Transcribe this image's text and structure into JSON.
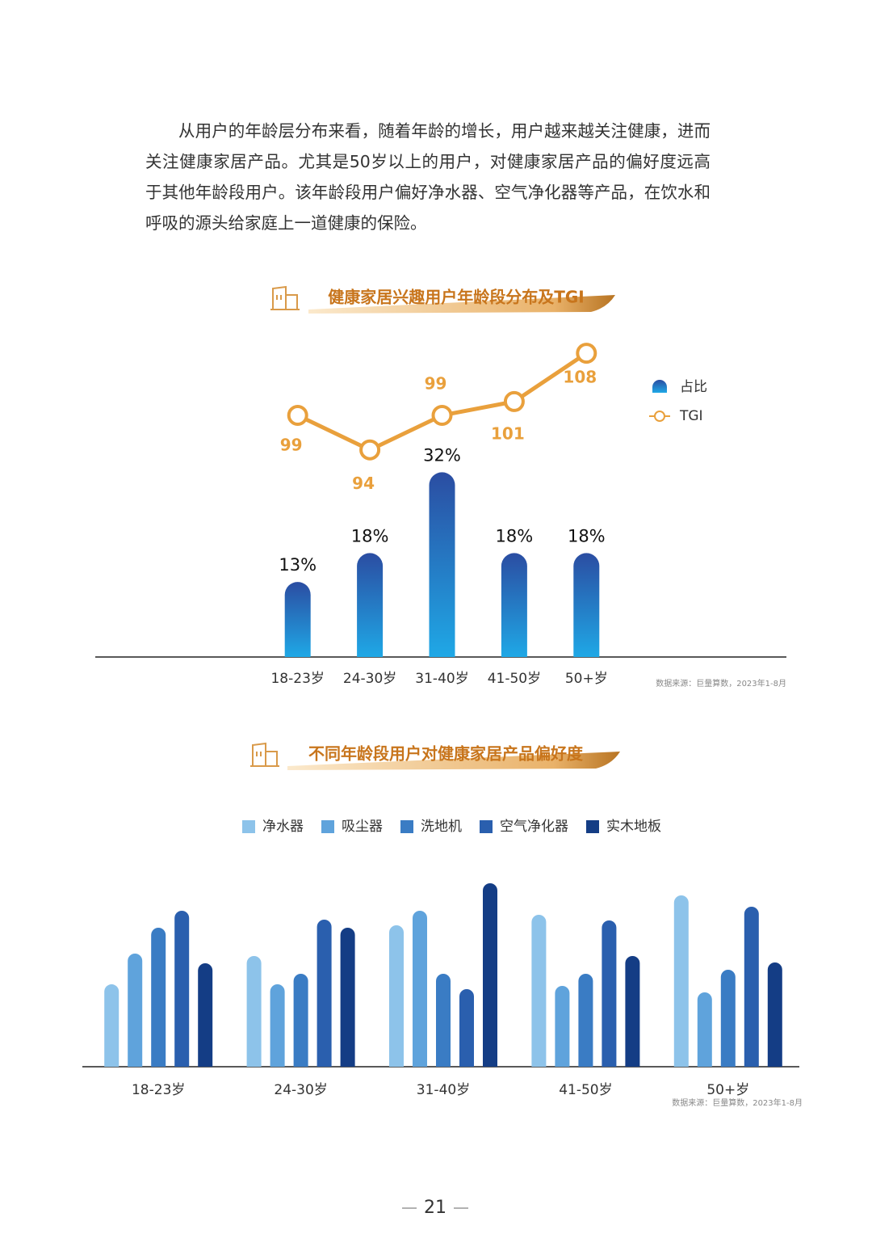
{
  "paragraph": "从用户的年龄层分布来看，随着年龄的增长，用户越来越关注健康，进而关注健康家居产品。尤其是50岁以上的用户，对健康家居产品的偏好度远高于其他年龄段用户。该年龄段用户偏好净水器、空气净化器等产品，在饮水和呼吸的源头给家庭上一道健康的保险。",
  "chart_data": [
    {
      "type": "bar",
      "title": "健康家居兴趣用户年龄段分布及TGI",
      "categories": [
        "18-23岁",
        "24-30岁",
        "31-40岁",
        "41-50岁",
        "50+岁"
      ],
      "series": [
        {
          "name": "占比",
          "color": "#2b4da2",
          "values": [
            13,
            18,
            32,
            18,
            18
          ],
          "value_labels": [
            "13%",
            "18%",
            "32%",
            "18%",
            "18%"
          ]
        },
        {
          "name": "TGI",
          "type": "line",
          "axis": "y2",
          "color": "#e9a03c",
          "values": [
            99,
            94,
            99,
            101,
            108
          ]
        }
      ],
      "ylim": [
        0,
        55
      ],
      "y2lim": [
        64,
        110
      ],
      "source": "数据来源：巨量算数，2023年1-8月"
    },
    {
      "type": "bar",
      "title": "不同年龄段用户对健康家居产品偏好度",
      "categories": [
        "18-23岁",
        "24-30岁",
        "31-40岁",
        "41-50岁",
        "50+岁"
      ],
      "series": [
        {
          "name": "净水器",
          "color": "#8dc3ea",
          "values": [
            102,
            137,
            175,
            188,
            212
          ]
        },
        {
          "name": "吸尘器",
          "color": "#5fa3dc",
          "values": [
            140,
            102,
            193,
            100,
            92
          ]
        },
        {
          "name": "洗地机",
          "color": "#3a7cc4",
          "values": [
            172,
            115,
            115,
            115,
            120
          ]
        },
        {
          "name": "空气净化器",
          "color": "#2a5fae",
          "values": [
            193,
            182,
            96,
            181,
            198
          ]
        },
        {
          "name": "实木地板",
          "color": "#143d85",
          "values": [
            128,
            172,
            227,
            137,
            129
          ]
        }
      ],
      "ylim": [
        0,
        240
      ],
      "source": "数据来源：巨量算数，2023年1-8月"
    }
  ],
  "page_number": 21
}
